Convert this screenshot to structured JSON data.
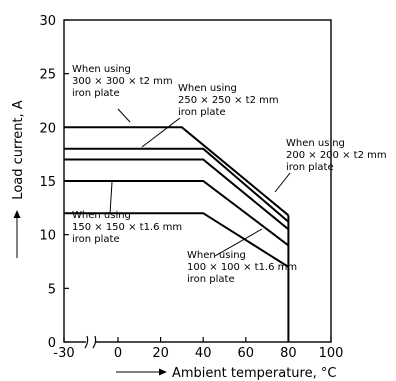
{
  "chart_data": {
    "type": "line",
    "title": "",
    "xlabel": "Ambient temperature, °C",
    "ylabel": "Load current, A",
    "xlim": [
      -30,
      100
    ],
    "ylim": [
      0,
      30
    ],
    "x_break": true,
    "grid": false,
    "legend": "none",
    "x_ticks": [
      "-30",
      "0",
      "20",
      "40",
      "60",
      "80",
      "100"
    ],
    "y_ticks": [
      "0",
      "5",
      "10",
      "15",
      "20",
      "25",
      "30"
    ],
    "series": [
      {
        "points": [
          [
            -30,
            20
          ],
          [
            30,
            20
          ],
          [
            80,
            11.8
          ]
        ]
      },
      {
        "points": [
          [
            -30,
            18
          ],
          [
            40,
            18
          ],
          [
            80,
            11.2
          ]
        ]
      },
      {
        "points": [
          [
            -30,
            17
          ],
          [
            40,
            17
          ],
          [
            80,
            10.5
          ]
        ]
      },
      {
        "points": [
          [
            -30,
            15
          ],
          [
            40,
            15
          ],
          [
            80,
            9
          ]
        ]
      },
      {
        "points": [
          [
            -30,
            12
          ],
          [
            40,
            12
          ],
          [
            80,
            7
          ]
        ]
      }
    ],
    "annotations": [
      {
        "lines": [
          "When using",
          "300 × 300 × t2 mm",
          "iron plate"
        ]
      },
      {
        "lines": [
          "When using",
          "250 × 250 × t2 mm",
          "iron plate"
        ]
      },
      {
        "lines": [
          "When using",
          "200 × 200 × t2 mm",
          "iron plate"
        ]
      },
      {
        "lines": [
          "When using",
          "150 × 150 × t1.6 mm",
          "iron plate"
        ]
      },
      {
        "lines": [
          "When using",
          "100 × 100 × t1.6 mm",
          "iron plate"
        ]
      }
    ]
  }
}
